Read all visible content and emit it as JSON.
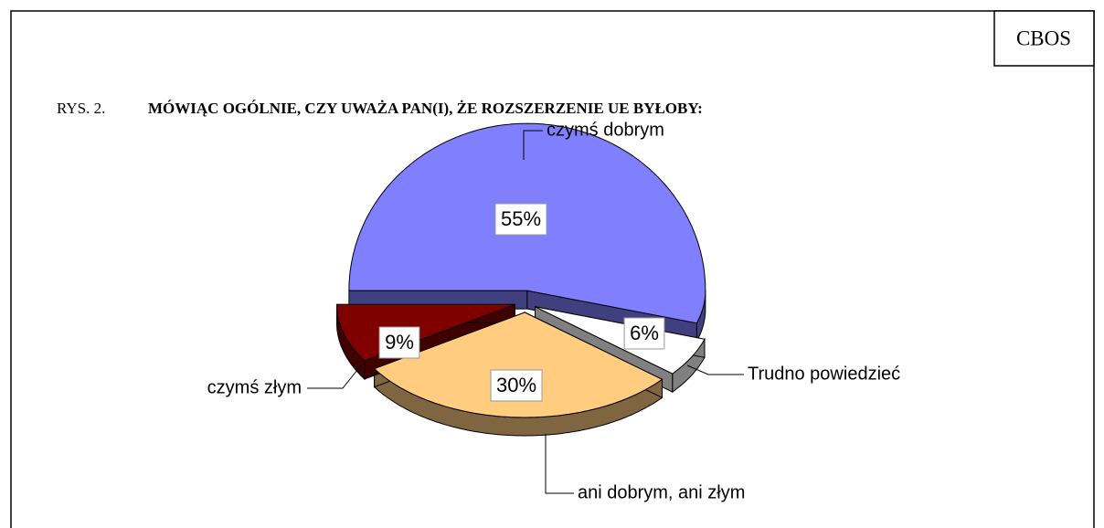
{
  "chart_data": {
    "type": "pie",
    "badge": "CBOS",
    "figure_label": "RYS. 2.",
    "title": "MÓWIĄC OGÓLNIE, CZY UWAŻA PAN(I), ŻE ROZSZERZENIE UE BYŁOBY:",
    "categories": [
      "czymś dobrym",
      "Trudno powiedzieć",
      "ani dobrym, ani złym",
      "czymś złym"
    ],
    "values": [
      55,
      6,
      30,
      9
    ],
    "value_labels": [
      "55%",
      "6%",
      "30%",
      "9%"
    ],
    "colors": [
      "#8080ff",
      "#ffffff",
      "#ffcc80",
      "#800000"
    ]
  }
}
